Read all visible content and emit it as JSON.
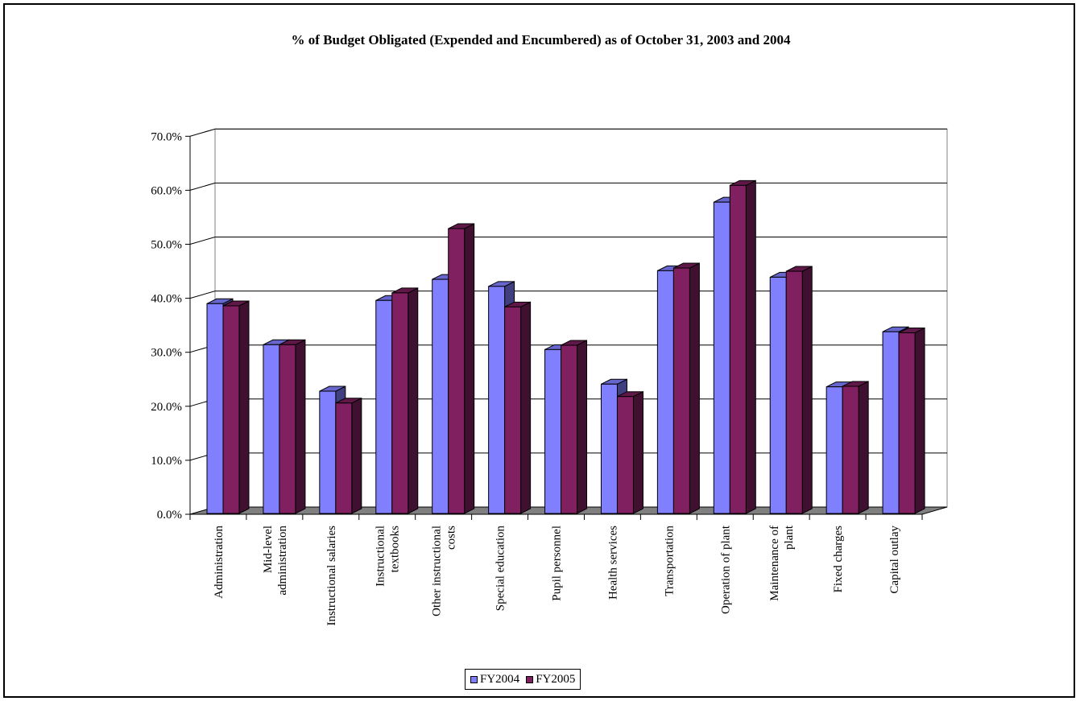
{
  "chart_data": {
    "type": "bar",
    "title": "% of Budget Obligated (Expended and Encumbered) as of October 31, 2003 and 2004",
    "categories": [
      [
        "Administration"
      ],
      [
        "Mid-level",
        "administration"
      ],
      [
        "Instructional salaries"
      ],
      [
        "Instructional",
        "textbooks"
      ],
      [
        "Other instructional",
        "costs"
      ],
      [
        "Special education"
      ],
      [
        "Pupil personnel"
      ],
      [
        "Health services"
      ],
      [
        "Transportation"
      ],
      [
        "Operation of plant"
      ],
      [
        "Maintenance of",
        "plant"
      ],
      [
        "Fixed charges"
      ],
      [
        "Capital outlay"
      ]
    ],
    "series": [
      {
        "name": "FY2004",
        "color": "#8080ff",
        "side_color": "#404080",
        "top_color": "#6666cc",
        "values": [
          39.0,
          31.4,
          22.8,
          39.6,
          43.5,
          42.2,
          30.5,
          24.1,
          45.1,
          57.8,
          43.9,
          23.6,
          33.8
        ]
      },
      {
        "name": "FY2005",
        "color": "#802060",
        "side_color": "#401030",
        "top_color": "#601848",
        "values": [
          38.6,
          31.4,
          20.6,
          41.0,
          52.9,
          38.4,
          31.3,
          21.8,
          45.6,
          60.9,
          45.0,
          23.7,
          33.6
        ]
      }
    ],
    "ylim": [
      0,
      70
    ],
    "yticks": [
      "0.0%",
      "10.0%",
      "20.0%",
      "30.0%",
      "40.0%",
      "50.0%",
      "60.0%",
      "70.0%"
    ],
    "grid": true,
    "legend_position": "bottom"
  }
}
